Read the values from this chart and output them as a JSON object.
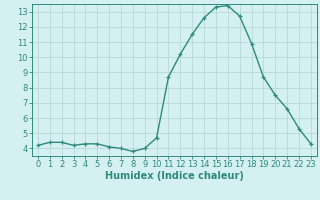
{
  "x": [
    0,
    1,
    2,
    3,
    4,
    5,
    6,
    7,
    8,
    9,
    10,
    11,
    12,
    13,
    14,
    15,
    16,
    17,
    18,
    19,
    20,
    21,
    22,
    23
  ],
  "y": [
    4.2,
    4.4,
    4.4,
    4.2,
    4.3,
    4.3,
    4.1,
    4.0,
    3.8,
    4.0,
    4.7,
    8.7,
    10.2,
    11.5,
    12.6,
    13.3,
    13.4,
    12.7,
    10.9,
    8.7,
    7.5,
    6.6,
    5.3,
    4.3
  ],
  "line_color": "#2e8b7a",
  "marker": "+",
  "marker_size": 3,
  "background_color": "#d4f0f0",
  "grid_color": "#b8d8d8",
  "xlabel": "Humidex (Indice chaleur)",
  "ylabel": "",
  "xlim": [
    -0.5,
    23.5
  ],
  "ylim": [
    3.5,
    13.5
  ],
  "yticks": [
    4,
    5,
    6,
    7,
    8,
    9,
    10,
    11,
    12,
    13
  ],
  "xticks": [
    0,
    1,
    2,
    3,
    4,
    5,
    6,
    7,
    8,
    9,
    10,
    11,
    12,
    13,
    14,
    15,
    16,
    17,
    18,
    19,
    20,
    21,
    22,
    23
  ],
  "tick_fontsize": 6,
  "xlabel_fontsize": 7,
  "line_width": 1.0
}
